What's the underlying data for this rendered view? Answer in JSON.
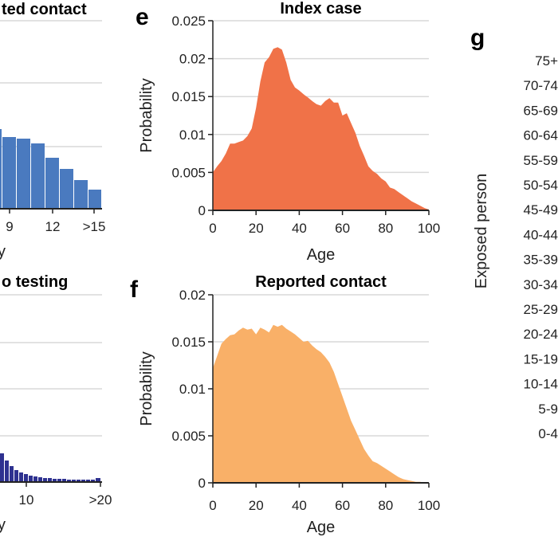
{
  "colors": {
    "index_fill": "#f07248",
    "contact_fill": "#f9b068",
    "hist_blue": "#4a7abf",
    "hist_navy": "#2e3190",
    "grid": "#d9d9d9"
  },
  "panels": {
    "a_title": "ted contact",
    "a_xticks": [
      "9",
      "12",
      ">15"
    ],
    "a_xlabel_fragment": "y",
    "b_title": "o testing",
    "b_xticks": [
      "10",
      ">20"
    ],
    "b_xlabel_fragment": "y",
    "g_letter": "g",
    "g_ylabel": "Exposed person"
  },
  "g_age_groups": [
    "75+",
    "70-74",
    "65-69",
    "60-64",
    "55-59",
    "50-54",
    "45-49",
    "40-44",
    "35-39",
    "30-34",
    "25-29",
    "20-24",
    "15-19",
    "10-14",
    "5-9",
    "0-4"
  ],
  "chart_data": [
    {
      "panel": "e",
      "type": "area",
      "title": "Index case",
      "xlabel": "Age",
      "ylabel": "Probability",
      "xlim": [
        0,
        100
      ],
      "ylim": [
        0,
        0.025
      ],
      "xticks": [
        0,
        20,
        40,
        60,
        80,
        100
      ],
      "yticks": [
        "0",
        "0.005",
        "0.01",
        "0.015",
        "0.02",
        "0.025"
      ],
      "x": [
        0,
        2,
        4,
        6,
        8,
        10,
        12,
        14,
        16,
        18,
        20,
        22,
        24,
        26,
        28,
        30,
        32,
        34,
        36,
        38,
        40,
        42,
        44,
        46,
        48,
        50,
        52,
        54,
        56,
        58,
        60,
        62,
        64,
        66,
        68,
        70,
        72,
        74,
        76,
        78,
        80,
        82,
        84,
        86,
        88,
        90,
        92,
        94,
        96,
        98,
        100
      ],
      "y": [
        0.005,
        0.0058,
        0.0065,
        0.0075,
        0.0088,
        0.0088,
        0.009,
        0.0092,
        0.0098,
        0.0108,
        0.0135,
        0.017,
        0.0195,
        0.0202,
        0.0213,
        0.0215,
        0.0212,
        0.0195,
        0.0172,
        0.0162,
        0.0158,
        0.0153,
        0.0149,
        0.0144,
        0.014,
        0.0138,
        0.0144,
        0.0148,
        0.0142,
        0.0142,
        0.0125,
        0.0128,
        0.0115,
        0.0102,
        0.0085,
        0.0072,
        0.0058,
        0.0052,
        0.0048,
        0.0042,
        0.0038,
        0.003,
        0.0028,
        0.0024,
        0.002,
        0.0016,
        0.0012,
        0.0009,
        0.0006,
        0.0003,
        0.0001
      ]
    },
    {
      "panel": "f",
      "type": "area",
      "title": "Reported contact",
      "xlabel": "Age",
      "ylabel": "Probability",
      "xlim": [
        0,
        100
      ],
      "ylim": [
        0,
        0.02
      ],
      "xticks": [
        0,
        20,
        40,
        60,
        80,
        100
      ],
      "yticks": [
        "0",
        "0.005",
        "0.01",
        "0.015",
        "0.02"
      ],
      "x": [
        0,
        2,
        4,
        6,
        8,
        10,
        12,
        14,
        16,
        18,
        20,
        22,
        24,
        26,
        28,
        30,
        32,
        34,
        36,
        38,
        40,
        42,
        44,
        46,
        48,
        50,
        52,
        54,
        56,
        58,
        60,
        62,
        64,
        66,
        68,
        70,
        72,
        74,
        76,
        78,
        80,
        82,
        84,
        86,
        88,
        90,
        92,
        94,
        96,
        98,
        100
      ],
      "y": [
        0.0122,
        0.0135,
        0.0148,
        0.0153,
        0.0157,
        0.0158,
        0.0162,
        0.0165,
        0.0163,
        0.0164,
        0.0158,
        0.0165,
        0.0163,
        0.016,
        0.0168,
        0.0166,
        0.0168,
        0.0164,
        0.0161,
        0.0158,
        0.0154,
        0.015,
        0.0151,
        0.0146,
        0.0142,
        0.0139,
        0.0134,
        0.0128,
        0.0118,
        0.0105,
        0.0092,
        0.0079,
        0.0066,
        0.0056,
        0.0046,
        0.0036,
        0.0029,
        0.0023,
        0.0021,
        0.0018,
        0.0015,
        0.0012,
        0.0009,
        0.0006,
        0.0004,
        0.0003,
        0.0002,
        0.0001,
        0.0001,
        0,
        0
      ]
    }
  ]
}
